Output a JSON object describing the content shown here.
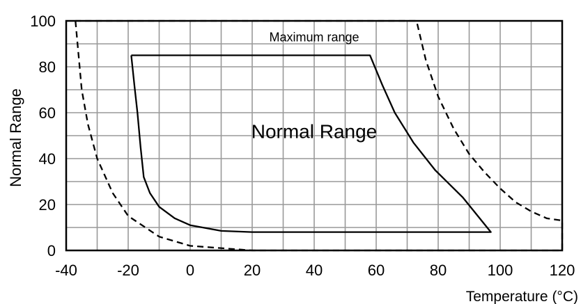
{
  "chart_data": {
    "type": "line",
    "title": "",
    "xlabel": "Temperature (°C)",
    "ylabel": "Normal Range",
    "xlim": [
      -40,
      120
    ],
    "ylim": [
      0,
      100
    ],
    "grid": true,
    "x_ticks": [
      -40,
      -20,
      0,
      20,
      40,
      60,
      80,
      100,
      120
    ],
    "y_ticks": [
      0,
      20,
      40,
      60,
      80,
      100
    ],
    "x_tick_labels": [
      "-40",
      "-20",
      "0",
      "20",
      "40",
      "60",
      "80",
      "100",
      "120"
    ],
    "y_tick_labels": [
      "0",
      "20",
      "40",
      "60",
      "80",
      "100"
    ],
    "annotations": [
      {
        "text": "Maximum range",
        "x": 40,
        "y": 91
      },
      {
        "text": "Normal Range",
        "x": 40,
        "y": 49
      }
    ],
    "series": [
      {
        "style": "dashed",
        "points": [
          [
            -37,
            100
          ],
          [
            -36,
            85
          ],
          [
            -35,
            70
          ],
          [
            -33,
            55
          ],
          [
            -30,
            40
          ],
          [
            -25,
            25
          ],
          [
            -20,
            15
          ],
          [
            -10,
            6
          ],
          [
            0,
            2
          ],
          [
            20,
            0
          ],
          [
            120,
            0
          ],
          [
            120,
            13
          ],
          [
            115,
            14
          ],
          [
            110,
            17
          ],
          [
            105,
            21
          ],
          [
            100,
            27
          ],
          [
            95,
            34
          ],
          [
            90,
            42
          ],
          [
            85,
            53
          ],
          [
            80,
            67
          ],
          [
            76,
            83
          ],
          [
            73,
            100
          ],
          [
            -37,
            100
          ]
        ]
      },
      {
        "style": "solid",
        "points": [
          [
            -19,
            85
          ],
          [
            58,
            85
          ],
          [
            62,
            72
          ],
          [
            66,
            60
          ],
          [
            72,
            47
          ],
          [
            79,
            35
          ],
          [
            88,
            23
          ],
          [
            97,
            8
          ],
          [
            20,
            8
          ],
          [
            10,
            8.5
          ],
          [
            0,
            11
          ],
          [
            -5,
            14
          ],
          [
            -10,
            19
          ],
          [
            -13,
            25
          ],
          [
            -15,
            32
          ],
          [
            -16,
            45
          ],
          [
            -17,
            60
          ],
          [
            -18,
            72
          ],
          [
            -19,
            85
          ]
        ]
      }
    ],
    "colors": {
      "line": "#000000",
      "grid": "#999999",
      "background": "#ffffff"
    }
  }
}
